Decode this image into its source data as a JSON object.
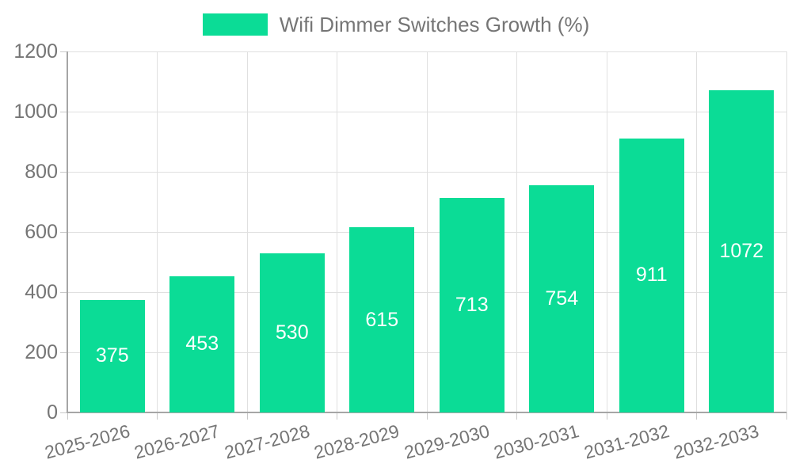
{
  "legend": {
    "label": "Wifi Dimmer Switches Growth (%)"
  },
  "chart_data": {
    "type": "bar",
    "title": "Wifi Dimmer Switches Growth (%)",
    "categories": [
      "2025-2026",
      "2026-2027",
      "2027-2028",
      "2028-2029",
      "2029-2030",
      "2030-2031",
      "2031-2032",
      "2032-2033"
    ],
    "series": [
      {
        "name": "Wifi Dimmer Switches Growth (%)",
        "values": [
          375,
          453,
          530,
          615,
          713,
          754,
          911,
          1072
        ]
      }
    ],
    "xlabel": "",
    "ylabel": "",
    "ylim": [
      0,
      1200
    ],
    "yticks": [
      0,
      200,
      400,
      600,
      800,
      1000,
      1200
    ],
    "grid": true,
    "legend_position": "top-center",
    "bar_labels_position": "inside-center",
    "colors": {
      "bar": "#0bdc96",
      "grid": "#e0e0e0",
      "axis": "#a6a6a6",
      "tick": "#c9c9c9",
      "label_text": "#757575",
      "value_text": "#ffffff"
    }
  }
}
